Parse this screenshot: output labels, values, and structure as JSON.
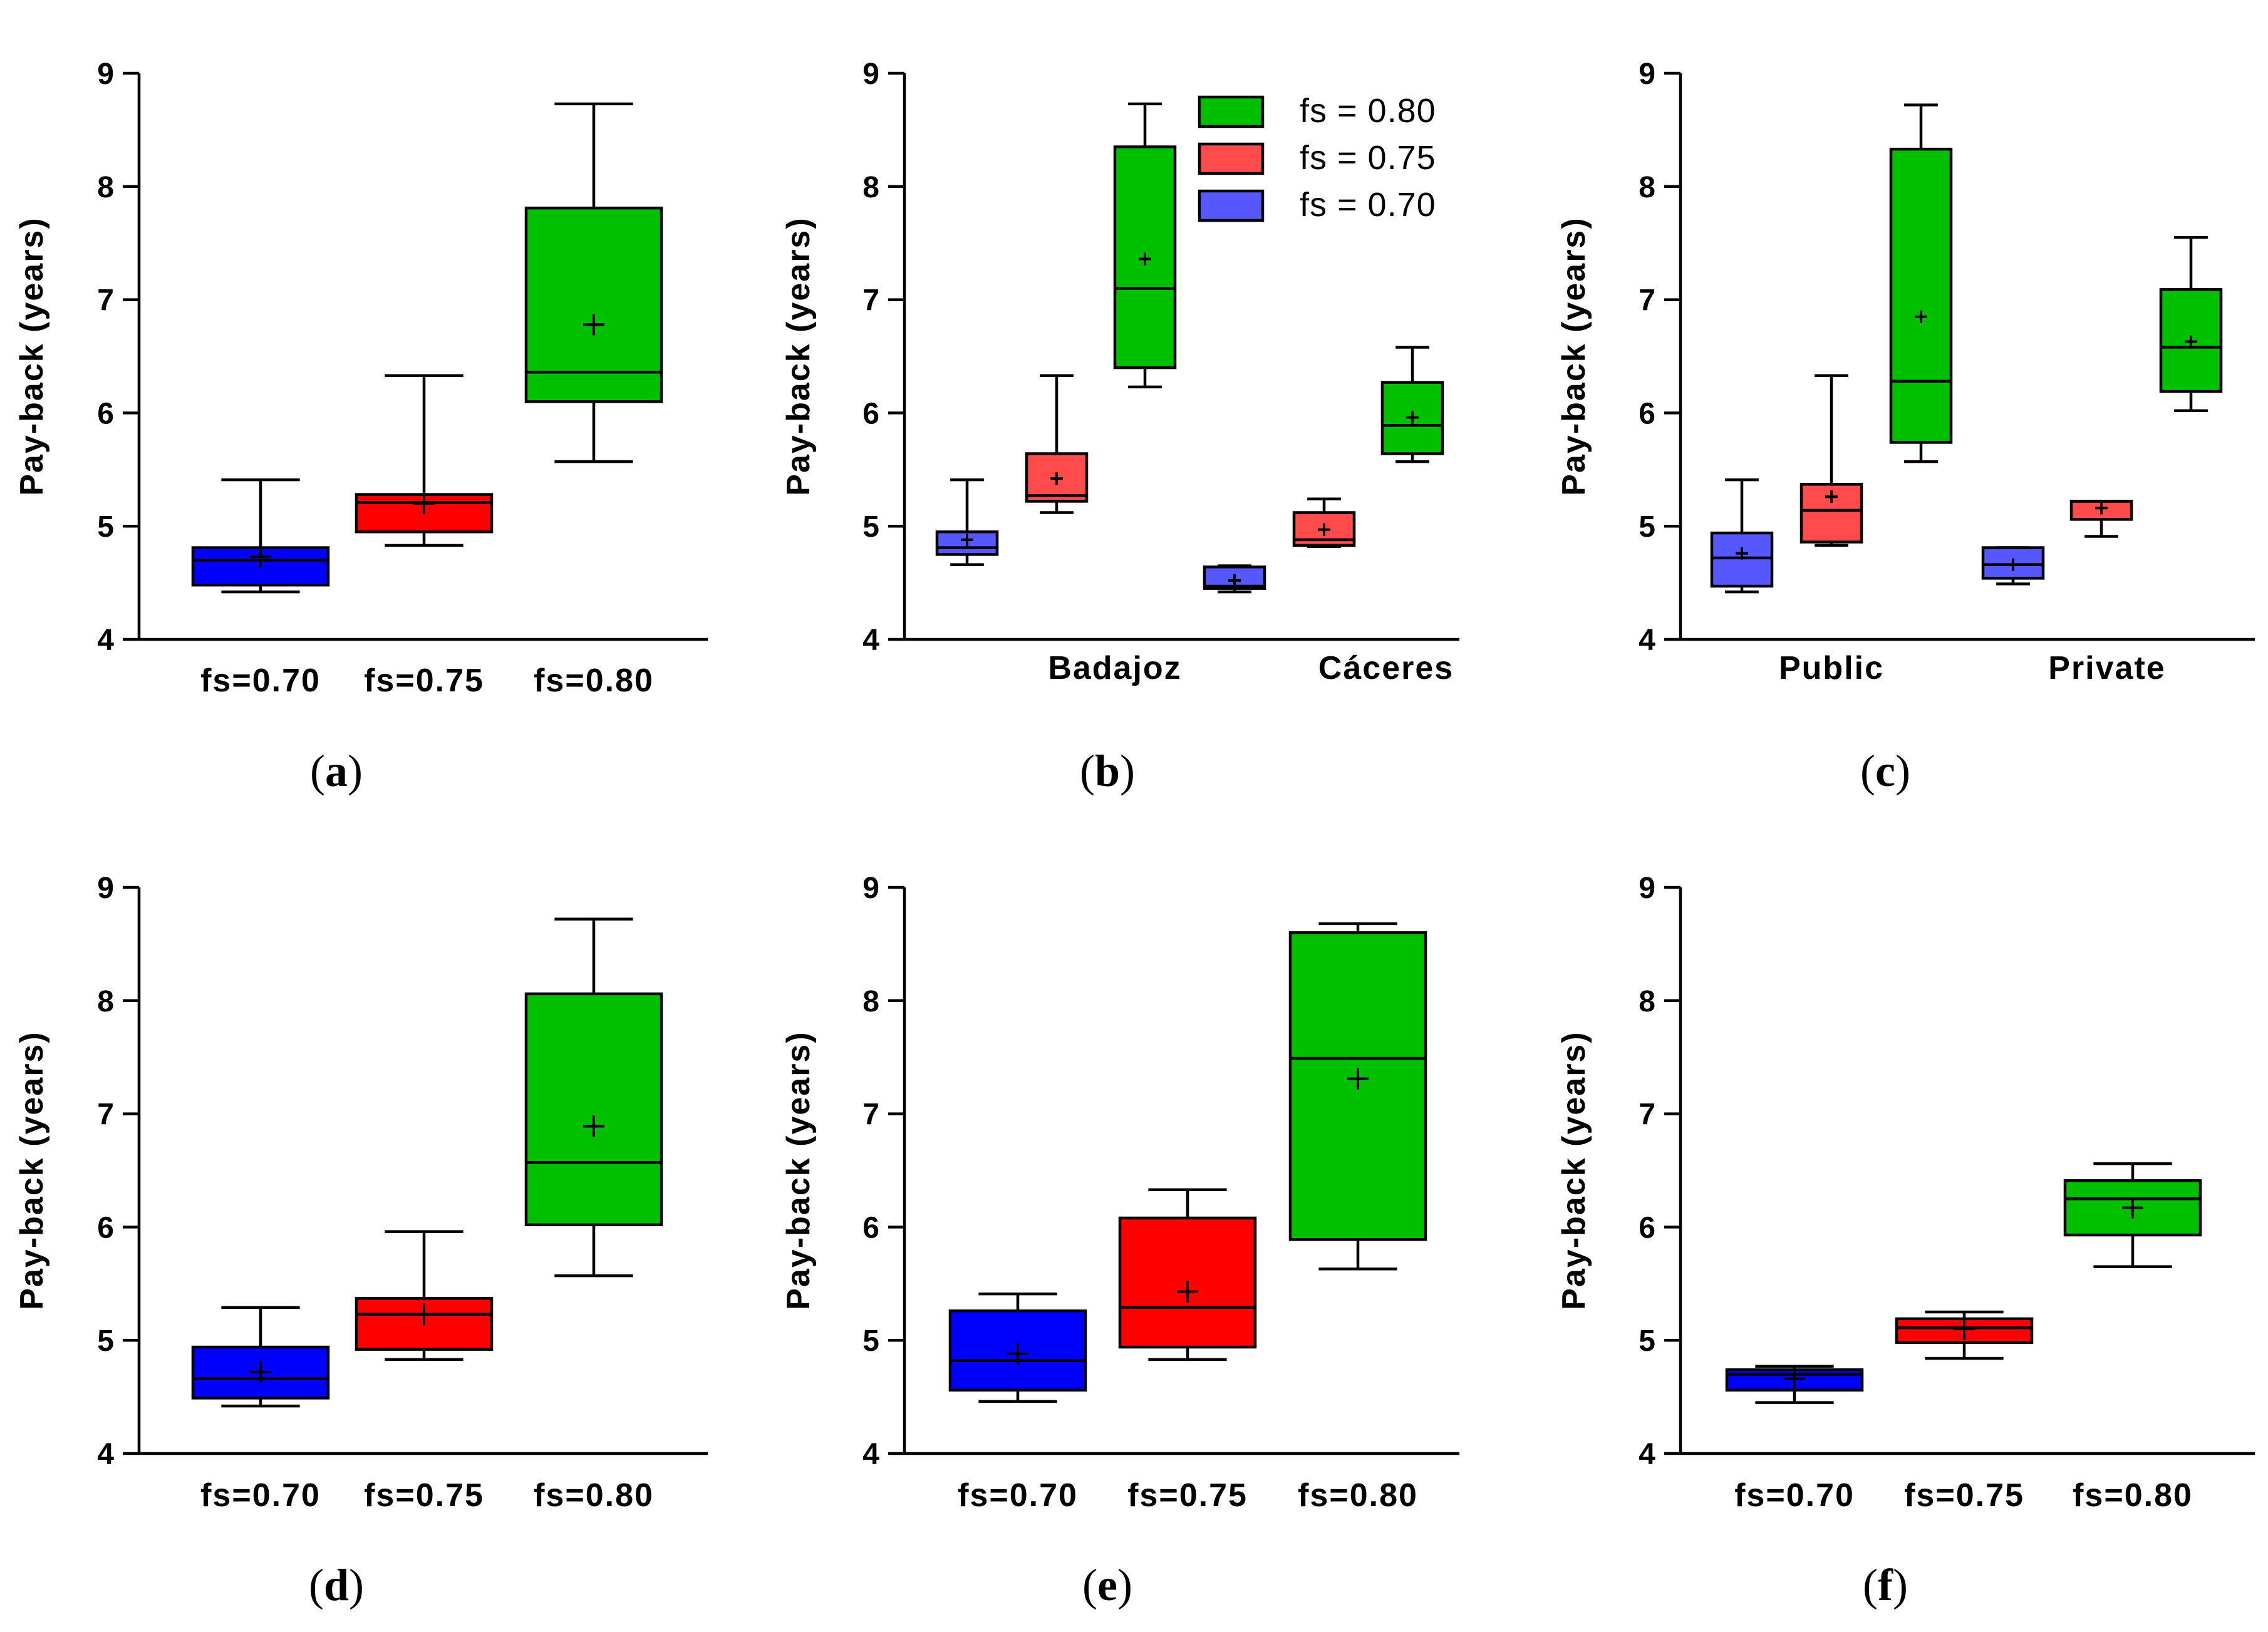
{
  "colors": {
    "fs_070": "#0000ff",
    "fs_070_light": "#5757ff",
    "fs_075": "#ff0000",
    "fs_075_light": "#ff4b4b",
    "fs_080": "#00c000"
  },
  "legend": {
    "items": [
      {
        "label": "fs = 0.80",
        "color": "#00c000"
      },
      {
        "label": "fs = 0.75",
        "color": "#ff4b4b"
      },
      {
        "label": "fs = 0.70",
        "color": "#5757ff"
      }
    ]
  },
  "chart_data": [
    {
      "type": "boxplot",
      "caption": "a",
      "ylabel": "Pay-back (years)",
      "ylim": [
        4,
        9
      ],
      "yticks": [
        4,
        5,
        6,
        7,
        8,
        9
      ],
      "categories": [
        "fs=0.70",
        "fs=0.75",
        "fs=0.80"
      ],
      "boxes": [
        {
          "color": "#0000ff",
          "min": 4.42,
          "q1": 4.48,
          "median": 4.7,
          "q3": 4.81,
          "max": 5.41,
          "mean": 4.73
        },
        {
          "color": "#ff0000",
          "min": 4.83,
          "q1": 4.95,
          "median": 5.21,
          "q3": 5.28,
          "max": 6.33,
          "mean": 5.2
        },
        {
          "color": "#00c000",
          "min": 5.57,
          "q1": 6.1,
          "median": 6.36,
          "q3": 7.81,
          "max": 8.73,
          "mean": 6.78
        }
      ]
    },
    {
      "type": "boxplot",
      "caption": "b",
      "ylabel": "Pay-back (years)",
      "ylim": [
        4,
        9
      ],
      "yticks": [
        4,
        5,
        6,
        7,
        8,
        9
      ],
      "groups": [
        "Badajoz",
        "Cáceres"
      ],
      "legend": true,
      "boxes": [
        {
          "group": 0,
          "color": "#5757ff",
          "min": 4.66,
          "q1": 4.75,
          "median": 4.81,
          "q3": 4.95,
          "max": 5.41,
          "mean": 4.88
        },
        {
          "group": 0,
          "color": "#ff4b4b",
          "min": 5.12,
          "q1": 5.22,
          "median": 5.27,
          "q3": 5.64,
          "max": 6.33,
          "mean": 5.42
        },
        {
          "group": 0,
          "color": "#00c000",
          "min": 6.23,
          "q1": 6.4,
          "median": 7.1,
          "q3": 8.35,
          "max": 8.73,
          "mean": 7.36
        },
        {
          "group": 1,
          "color": "#5757ff",
          "min": 4.42,
          "q1": 4.45,
          "median": 4.47,
          "q3": 4.64,
          "max": 4.65,
          "mean": 4.52
        },
        {
          "group": 1,
          "color": "#ff4b4b",
          "min": 4.82,
          "q1": 4.83,
          "median": 4.88,
          "q3": 5.12,
          "max": 5.24,
          "mean": 4.97
        },
        {
          "group": 1,
          "color": "#00c000",
          "min": 5.57,
          "q1": 5.64,
          "median": 5.89,
          "q3": 6.27,
          "max": 6.58,
          "mean": 5.96
        }
      ]
    },
    {
      "type": "boxplot",
      "caption": "c",
      "ylabel": "Pay-back (years)",
      "ylim": [
        4,
        9
      ],
      "yticks": [
        4,
        5,
        6,
        7,
        8,
        9
      ],
      "groups": [
        "Public",
        "Private"
      ],
      "boxes": [
        {
          "group": 0,
          "color": "#5757ff",
          "min": 4.42,
          "q1": 4.47,
          "median": 4.72,
          "q3": 4.94,
          "max": 5.41,
          "mean": 4.76
        },
        {
          "group": 0,
          "color": "#ff4b4b",
          "min": 4.83,
          "q1": 4.86,
          "median": 5.14,
          "q3": 5.37,
          "max": 6.33,
          "mean": 5.26
        },
        {
          "group": 0,
          "color": "#00c000",
          "min": 5.57,
          "q1": 5.74,
          "median": 6.28,
          "q3": 8.33,
          "max": 8.72,
          "mean": 6.85
        },
        {
          "group": 1,
          "color": "#5757ff",
          "min": 4.49,
          "q1": 4.54,
          "median": 4.66,
          "q3": 4.81,
          "max": 4.81,
          "mean": 4.66
        },
        {
          "group": 1,
          "color": "#ff4b4b",
          "min": 4.91,
          "q1": 5.06,
          "median": 5.22,
          "q3": 5.22,
          "max": 5.22,
          "mean": 5.16
        },
        {
          "group": 1,
          "color": "#00c000",
          "min": 6.02,
          "q1": 6.19,
          "median": 6.58,
          "q3": 7.09,
          "max": 7.55,
          "mean": 6.63
        }
      ]
    },
    {
      "type": "boxplot",
      "caption": "d",
      "ylabel": "Pay-back (years)",
      "ylim": [
        4,
        9
      ],
      "yticks": [
        4,
        5,
        6,
        7,
        8,
        9
      ],
      "categories": [
        "fs=0.70",
        "fs=0.75",
        "fs=0.80"
      ],
      "boxes": [
        {
          "color": "#0000ff",
          "min": 4.42,
          "q1": 4.49,
          "median": 4.66,
          "q3": 4.94,
          "max": 5.29,
          "mean": 4.72
        },
        {
          "color": "#ff0000",
          "min": 4.83,
          "q1": 4.92,
          "median": 5.23,
          "q3": 5.37,
          "max": 5.96,
          "mean": 5.23
        },
        {
          "color": "#00c000",
          "min": 5.57,
          "q1": 6.02,
          "median": 6.57,
          "q3": 8.06,
          "max": 8.72,
          "mean": 6.89
        }
      ]
    },
    {
      "type": "boxplot",
      "caption": "e",
      "ylabel": "Pay-back (years)",
      "ylim": [
        4,
        9
      ],
      "yticks": [
        4,
        5,
        6,
        7,
        8,
        9
      ],
      "categories": [
        "fs=0.70",
        "fs=0.75",
        "fs=0.80"
      ],
      "boxes": [
        {
          "color": "#0000ff",
          "min": 4.46,
          "q1": 4.56,
          "median": 4.82,
          "q3": 5.26,
          "max": 5.41,
          "mean": 4.88
        },
        {
          "color": "#ff0000",
          "min": 4.83,
          "q1": 4.94,
          "median": 5.29,
          "q3": 6.08,
          "max": 6.33,
          "mean": 5.43
        },
        {
          "color": "#00c000",
          "min": 5.63,
          "q1": 5.89,
          "median": 7.49,
          "q3": 8.6,
          "max": 8.68,
          "mean": 7.31
        }
      ]
    },
    {
      "type": "boxplot",
      "caption": "f",
      "ylabel": "Pay-back (years)",
      "ylim": [
        4,
        9
      ],
      "yticks": [
        4,
        5,
        6,
        7,
        8,
        9
      ],
      "categories": [
        "fs=0.70",
        "fs=0.75",
        "fs=0.80"
      ],
      "boxes": [
        {
          "color": "#0000ff",
          "min": 4.45,
          "q1": 4.56,
          "median": 4.7,
          "q3": 4.74,
          "max": 4.77,
          "mean": 4.66
        },
        {
          "color": "#ff0000",
          "min": 4.84,
          "q1": 4.98,
          "median": 5.11,
          "q3": 5.19,
          "max": 5.25,
          "mean": 5.1
        },
        {
          "color": "#00c000",
          "min": 5.65,
          "q1": 5.93,
          "median": 6.25,
          "q3": 6.41,
          "max": 6.56,
          "mean": 6.17
        }
      ]
    }
  ]
}
